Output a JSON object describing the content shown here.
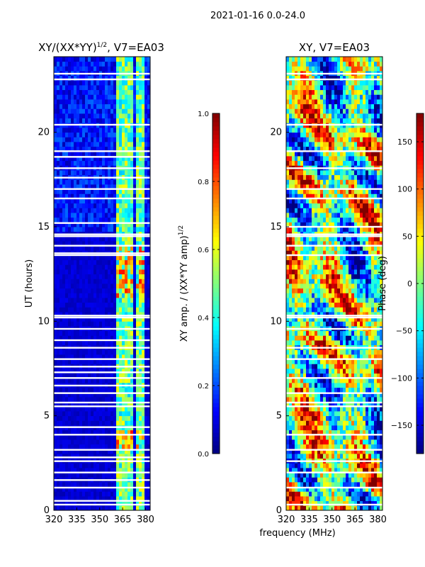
{
  "figure_title": "2021-01-16 0.0-24.0",
  "shared_xlabel": "frequency (MHz)",
  "chart_data": [
    {
      "type": "heatmap",
      "title": "XY/(XX*YY)",
      "title_exponent": "1/2",
      "title_suffix": ", V7=EA03",
      "xlabel": "",
      "ylabel": "UT (hours)",
      "xlim": [
        320,
        383
      ],
      "ylim": [
        0,
        24
      ],
      "x_ticks": [
        320,
        335,
        350,
        365,
        380
      ],
      "y_ticks": [
        0,
        5,
        10,
        15,
        20
      ],
      "colorbar": {
        "label": "XY amp. / (XX*YY amp)",
        "label_exponent": "1/2",
        "range": [
          0.0,
          1.0
        ],
        "ticks": [
          "0.0",
          "0.2",
          "0.4",
          "0.6",
          "0.8",
          "1.0"
        ],
        "tick_values": [
          0.0,
          0.2,
          0.4,
          0.6,
          0.8,
          1.0
        ],
        "colormap": "jet"
      },
      "gaps_ut": [
        0.3,
        0.5,
        1.2,
        1.6,
        2.0,
        2.6,
        2.8,
        3.2,
        4.0,
        4.4,
        5.5,
        5.7,
        6.2,
        6.6,
        7.0,
        7.3,
        7.6,
        8.0,
        8.6,
        9.0,
        9.6,
        10.2,
        10.3,
        13.5,
        13.6,
        14.0,
        14.5,
        14.6,
        15.2,
        16.5,
        17.0,
        17.6,
        18.1,
        18.7,
        19.0,
        20.4,
        22.8,
        23.1
      ],
      "band_mhz": [
        [
          361,
          364
        ],
        [
          365,
          368
        ],
        [
          369,
          372
        ],
        [
          373,
          375
        ],
        [
          376,
          380
        ]
      ]
    },
    {
      "type": "heatmap",
      "title": "XY, V7=EA03",
      "xlabel": "",
      "ylabel": "",
      "xlim": [
        320,
        383
      ],
      "ylim": [
        0,
        24
      ],
      "x_ticks": [
        320,
        335,
        350,
        365,
        380
      ],
      "y_ticks": [
        0,
        5,
        10,
        15,
        20
      ],
      "colorbar": {
        "label": "Phase (deg)",
        "range": [
          -180,
          180
        ],
        "ticks": [
          "150",
          "100",
          "50",
          "0",
          "−50",
          "−100",
          "−150"
        ],
        "tick_values": [
          150,
          100,
          50,
          0,
          -50,
          -100,
          -150
        ],
        "colormap": "jet"
      },
      "gaps_ut": [
        0.3,
        1.2,
        2.0,
        2.6,
        3.2,
        4.0,
        5.5,
        5.7,
        6.2,
        7.0,
        8.0,
        8.6,
        9.6,
        10.2,
        10.3,
        13.5,
        14.0,
        14.5,
        14.6,
        15.0,
        16.5,
        17.0,
        18.1,
        19.0,
        20.4,
        22.8,
        23.1
      ]
    }
  ]
}
